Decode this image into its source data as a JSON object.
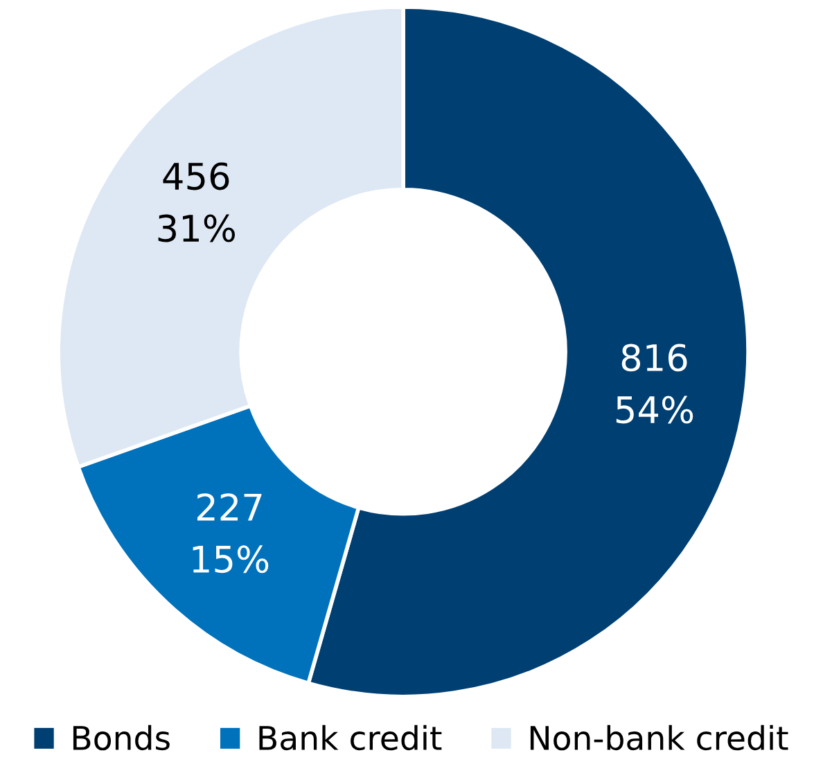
{
  "chart_data": {
    "type": "donut",
    "categories": [
      "Bonds",
      "Bank credit",
      "Non-bank credit"
    ],
    "values": [
      816,
      227,
      456
    ],
    "value_labels": [
      "816\n54%",
      "227\n15%",
      "456\n31%"
    ],
    "colors": [
      "#003f72",
      "#0072bc",
      "#dde8f4"
    ],
    "legend": "bottom"
  }
}
